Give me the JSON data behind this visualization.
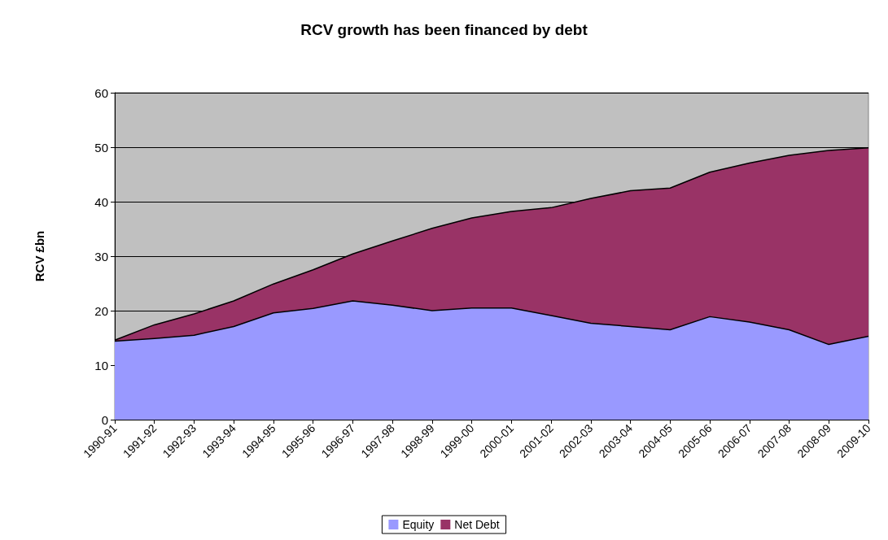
{
  "chart_data": {
    "type": "area",
    "title": "RCV growth has been financed by debt",
    "ylabel": "RCV £bn",
    "categories": [
      "1990-91",
      "1991-92",
      "1992-93",
      "1993-94",
      "1994-95",
      "1995-96",
      "1996-97",
      "1997-98",
      "1998-99",
      "1999-00",
      "2000-01",
      "2001-02",
      "2002-03",
      "2003-04",
      "2004-05",
      "2005-06",
      "2006-07",
      "2007-08",
      "2008-09",
      "2009-10"
    ],
    "stacked": true,
    "series": [
      {
        "name": "Equity",
        "color": "#9999ff",
        "values": [
          14.4,
          14.9,
          15.5,
          17.1,
          19.6,
          20.4,
          21.8,
          21.0,
          20.0,
          20.5,
          20.5,
          19.1,
          17.7,
          17.1,
          16.5,
          18.9,
          17.9,
          16.5,
          13.8,
          15.3
        ]
      },
      {
        "name": "Net Debt",
        "color": "#993366",
        "values": [
          0.2,
          2.5,
          3.9,
          4.7,
          5.3,
          7.1,
          8.6,
          11.8,
          15.1,
          16.5,
          17.7,
          19.8,
          22.9,
          24.9,
          26.0,
          26.5,
          29.2,
          32.0,
          35.6,
          34.6
        ]
      }
    ],
    "ylim": [
      0,
      60
    ],
    "yticks": [
      0,
      10,
      20,
      30,
      40,
      50,
      60
    ],
    "grid": "y",
    "legend": "bottom"
  }
}
